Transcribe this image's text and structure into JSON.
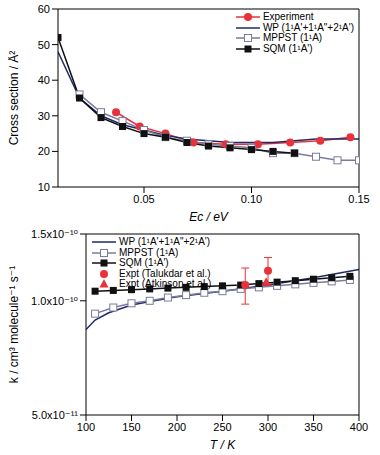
{
  "chart_data": [
    {
      "type": "line",
      "xlabel": "Ec / eV",
      "ylabel": "Cross section / Å²",
      "xlim": [
        0.01,
        0.15
      ],
      "xticks": [
        0.05,
        {
          "value": 0.1,
          "label": "0.10"
        },
        0.15
      ],
      "ylim": [
        10,
        60
      ],
      "yticks": [
        10,
        20,
        30,
        40,
        50,
        60
      ],
      "legend": "upper right",
      "series": [
        {
          "name": "Experiment",
          "color": "#e8313a",
          "marker": "circle",
          "line_style": "solid",
          "x": [
            0.037,
            0.048,
            0.06,
            0.073,
            0.088,
            0.103,
            0.118,
            0.132,
            0.146
          ],
          "values": [
            31,
            27,
            25,
            22.5,
            22,
            22,
            22.5,
            23,
            24
          ]
        },
        {
          "name": "WP (1¹A'+1¹A\"+2¹A')",
          "color": "#1f2a6b",
          "marker": "none",
          "line_style": "solid",
          "x": [
            0.01,
            0.02,
            0.03,
            0.04,
            0.05,
            0.06,
            0.07,
            0.08,
            0.09,
            0.1,
            0.11,
            0.12,
            0.13,
            0.14,
            0.15
          ],
          "values": [
            48,
            35,
            30,
            27.5,
            26,
            24.5,
            23.5,
            23,
            22.5,
            22.5,
            22.5,
            23,
            23.5,
            23.5,
            23.5
          ]
        },
        {
          "name": "MPPST (1¹A)",
          "color": "#7b7b9c",
          "marker": "square_open",
          "line_style": "solid",
          "x": [
            0.02,
            0.03,
            0.04,
            0.05,
            0.06,
            0.07,
            0.08,
            0.09,
            0.1,
            0.11,
            0.12,
            0.13,
            0.14,
            0.15
          ],
          "values": [
            36,
            31,
            28.5,
            26,
            24,
            23,
            22,
            21.5,
            21,
            19.5,
            19.5,
            18.5,
            17.5,
            17.5
          ]
        },
        {
          "name": "SQM (1¹A')",
          "color": "#111111",
          "marker": "square",
          "line_style": "solid",
          "x": [
            0.01,
            0.02,
            0.03,
            0.04,
            0.05,
            0.06,
            0.07,
            0.08,
            0.09,
            0.1,
            0.11,
            0.12
          ],
          "values": [
            52,
            35,
            29.5,
            27,
            25,
            24,
            22.5,
            21.5,
            21,
            20.5,
            20,
            19.5
          ]
        }
      ]
    },
    {
      "type": "line",
      "xlabel": "T / K",
      "ylabel": "k / cm³ molecule⁻¹ s⁻¹",
      "log": "y",
      "xlim": [
        100,
        400
      ],
      "xticks": [
        100,
        150,
        200,
        250,
        300,
        350,
        400
      ],
      "ylim": [
        5e-11,
        1.5e-10
      ],
      "yticks": [
        {
          "value": 5e-11,
          "label": "5.0x10⁻¹¹"
        },
        {
          "value": 1e-10,
          "label": "1.0x10⁻¹⁰"
        },
        {
          "value": 1.5e-10,
          "label": "1.5x10⁻¹⁰"
        }
      ],
      "legend": "upper left",
      "series": [
        {
          "name": "WP (1¹A'+1¹A\"+2¹A')",
          "color": "#1f2a6b",
          "marker": "none",
          "line_style": "solid",
          "x": [
            100,
            110,
            125,
            150,
            175,
            200,
            250,
            300,
            350,
            400
          ],
          "values": [
            8.4e-11,
            8.9e-11,
            9.3e-11,
            9.75e-11,
            1e-10,
            1.025e-10,
            1.06e-10,
            1.1e-10,
            1.15e-10,
            1.21e-10
          ]
        },
        {
          "name": "MPPST (1¹A)",
          "color": "#7b7b9c",
          "marker": "square_open",
          "line_style": "solid",
          "x": [
            110,
            130,
            150,
            170,
            190,
            210,
            230,
            250,
            270,
            290,
            310,
            330,
            350,
            370,
            390
          ],
          "values": [
            9.25e-11,
            9.6e-11,
            9.85e-11,
            1e-10,
            1.02e-10,
            1.035e-10,
            1.05e-10,
            1.06e-10,
            1.075e-10,
            1.085e-10,
            1.095e-10,
            1.105e-10,
            1.115e-10,
            1.125e-10,
            1.135e-10
          ]
        },
        {
          "name": "SQM (1¹A')",
          "color": "#111111",
          "marker": "square",
          "line_style": "solid",
          "x": [
            110,
            130,
            150,
            170,
            190,
            210,
            230,
            250,
            270,
            290,
            310,
            330,
            350,
            370,
            390
          ],
          "values": [
            1.06e-10,
            1.065e-10,
            1.07e-10,
            1.075e-10,
            1.08e-10,
            1.085e-10,
            1.09e-10,
            1.095e-10,
            1.1e-10,
            1.11e-10,
            1.12e-10,
            1.13e-10,
            1.14e-10,
            1.15e-10,
            1.16e-10
          ]
        },
        {
          "name": "Expt (Talukdar et al.)",
          "color": "#e8313a",
          "marker": "circle",
          "line_style": "none",
          "x": [
            275,
            300
          ],
          "values": [
            1.1e-10,
            1.2e-10
          ],
          "errors": [
            1.2e-11,
            1e-11
          ]
        },
        {
          "name": "Expt (Atkinson et al.)",
          "color": "#e8313a",
          "marker": "triangle",
          "line_style": "none",
          "x": [
            298
          ],
          "values": [
            1.12e-10
          ]
        }
      ]
    }
  ]
}
